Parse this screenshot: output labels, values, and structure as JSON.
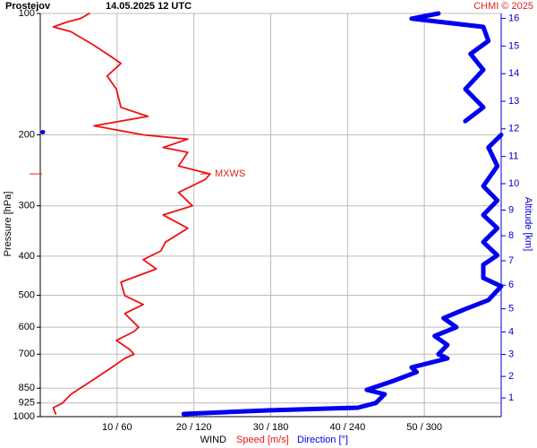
{
  "chart_data": {
    "type": "wind-profile",
    "title": "Prostejov",
    "subtitle": "14.05.2025 12 UTC",
    "credit": "CHMI © 2025",
    "xlabel": "WIND",
    "xlabel_speed": "Speed [m/s]",
    "xlabel_direction": "Direction [°]",
    "ylabel": "Pressure [hPa]",
    "y2label": "Altitude [km]",
    "log_y": true,
    "grid": true,
    "xlim": [
      0,
      60
    ],
    "x2lim": [
      0,
      360
    ],
    "xticks": [
      {
        "value": 10,
        "label": "10 / 60"
      },
      {
        "value": 20,
        "label": "20 / 120"
      },
      {
        "value": 30,
        "label": "30 / 180"
      },
      {
        "value": 40,
        "label": "40 / 240"
      },
      {
        "value": 50,
        "label": "50 / 300"
      }
    ],
    "ylim": [
      1000,
      100
    ],
    "yticks": [
      100,
      200,
      300,
      400,
      500,
      600,
      700,
      850,
      925,
      1000
    ],
    "y2ticks": [
      1,
      2,
      3,
      4,
      5,
      6,
      7,
      8,
      9,
      10,
      11,
      12,
      13,
      14,
      15,
      16
    ],
    "y2color": "#0000cc",
    "annotation": {
      "text": "MXWS",
      "pressure": 250,
      "color": "#dd2222"
    },
    "series": [
      {
        "name": "Speed",
        "color": "#ee1111",
        "axis": "x",
        "values": [
          2,
          1.7,
          2.9,
          4,
          5.2,
          5.8,
          7.6,
          9.3,
          11,
          12.2,
          11.6,
          9.9,
          12.2,
          12.8,
          11,
          13.4,
          11,
          10.5,
          15.1,
          13.4,
          15.7,
          16.3,
          19.2,
          16,
          19.8,
          18,
          21.5,
          22.1,
          18,
          19.2,
          16,
          19.2,
          13.4,
          7,
          14,
          10.5,
          9.9,
          8.7,
          10.5,
          8.7,
          7,
          4,
          1.7,
          3.5,
          5.2,
          6.4
        ],
        "pressure": [
          985,
          950,
          925,
          880,
          850,
          836,
          794,
          755,
          717,
          700,
          681,
          647,
          615,
          600,
          555,
          527,
          501,
          464,
          430,
          408,
          388,
          369,
          341,
          316,
          300,
          278,
          258,
          250,
          239,
          221,
          215,
          205,
          200,
          190,
          180,
          171,
          154,
          143,
          133,
          126,
          120,
          111,
          108,
          105,
          103,
          100
        ]
      },
      {
        "name": "Direction",
        "color": "#0000ee",
        "axis": "x2",
        "values": [
          112,
          178,
          248,
          262,
          269,
          255,
          276,
          294,
          290,
          318,
          311,
          318,
          308,
          325,
          315,
          332,
          350,
          360,
          346,
          346,
          357,
          346,
          357,
          346,
          357,
          346,
          357,
          350,
          360,
          null,
          2,
          null,
          332,
          346,
          332,
          346,
          336,
          350,
          346,
          290,
          311
        ],
        "pressure": [
          985,
          965,
          950,
          925,
          880,
          858,
          815,
          775,
          755,
          717,
          700,
          664,
          631,
          600,
          570,
          541,
          514,
          475,
          453,
          420,
          398,
          369,
          341,
          316,
          291,
          268,
          239,
          215,
          200,
          null,
          197,
          null,
          185,
          171,
          154,
          138,
          126,
          117,
          108,
          103,
          100
        ]
      }
    ]
  }
}
